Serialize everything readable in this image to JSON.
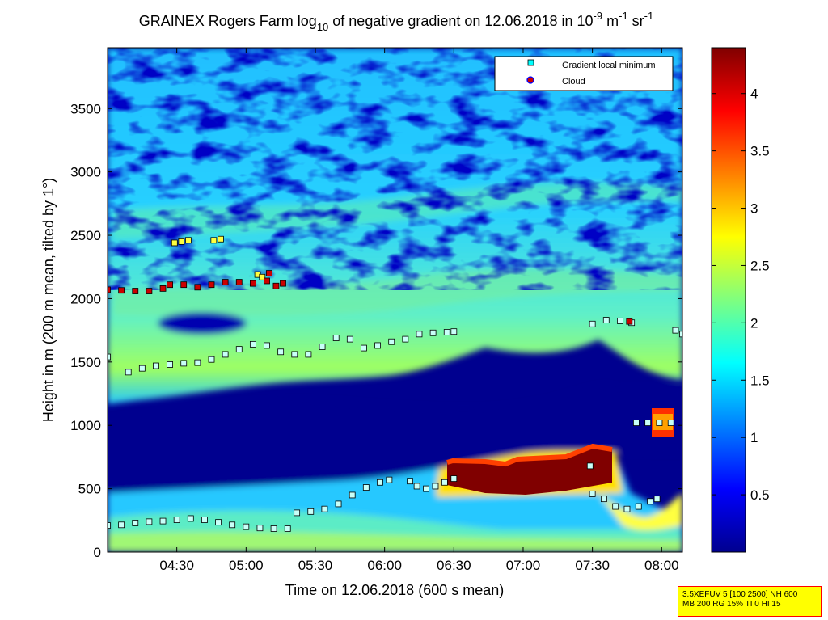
{
  "title": {
    "main": "GRAINEX Rogers Farm log",
    "sub1": "10",
    "mid": " of negative gradient on 12.06.2018 in 10",
    "sup1": "-9",
    "mid2": " m",
    "sup2": "-1",
    "mid3": " sr",
    "sup3": "-1"
  },
  "info_box": {
    "line1": "3.5XEFUV 5 [100 2500] NH 600",
    "line2": "MB 200 RG 15% TI 0 HI 15"
  },
  "colors": {
    "background": "#00008f",
    "overlay_min_marker": "#00ffff",
    "cloud_marker_fill": "#cc0000",
    "cloud_marker_edge": "#0000ff"
  },
  "chart_data": {
    "type": "heatmap",
    "xlabel": "Time on 12.06.2018 (600 s mean)",
    "ylabel": "Height in m (200 m mean, tilted by 1°)",
    "x_ticks": [
      "04:30",
      "05:00",
      "05:30",
      "06:00",
      "06:30",
      "07:00",
      "07:30",
      "08:00"
    ],
    "x_tick_minutes": [
      270,
      300,
      330,
      360,
      390,
      420,
      450,
      480
    ],
    "xlim_minutes": [
      240,
      489
    ],
    "y_ticks": [
      "0",
      "500",
      "1000",
      "1500",
      "2000",
      "2500",
      "3000",
      "3500"
    ],
    "y_tick_values": [
      0,
      500,
      1000,
      1500,
      2000,
      2500,
      3000,
      3500
    ],
    "ylim": [
      0,
      3980
    ],
    "colorbar": {
      "ticks": [
        "0.5",
        "1",
        "1.5",
        "2",
        "2.5",
        "3",
        "3.5",
        "4"
      ],
      "tick_values": [
        0.5,
        1,
        1.5,
        2,
        2.5,
        3,
        3.5,
        4
      ],
      "range": [
        0,
        4.4
      ],
      "colormap": "jet"
    },
    "legend": {
      "position": "top-right",
      "entries": [
        {
          "label": "Gradient local minimum",
          "marker": "square",
          "color": "#00ffff"
        },
        {
          "label": "Cloud",
          "marker": "circle",
          "color": "#cc0000"
        }
      ]
    },
    "gradient_minimum": [
      {
        "t": 240,
        "h": 210
      },
      {
        "t": 246,
        "h": 215
      },
      {
        "t": 252,
        "h": 230
      },
      {
        "t": 258,
        "h": 240
      },
      {
        "t": 264,
        "h": 245
      },
      {
        "t": 270,
        "h": 255
      },
      {
        "t": 276,
        "h": 265
      },
      {
        "t": 282,
        "h": 255
      },
      {
        "t": 288,
        "h": 235
      },
      {
        "t": 294,
        "h": 215
      },
      {
        "t": 300,
        "h": 200
      },
      {
        "t": 306,
        "h": 190
      },
      {
        "t": 312,
        "h": 185
      },
      {
        "t": 318,
        "h": 185
      },
      {
        "t": 322,
        "h": 310
      },
      {
        "t": 328,
        "h": 320
      },
      {
        "t": 334,
        "h": 340
      },
      {
        "t": 340,
        "h": 380
      },
      {
        "t": 346,
        "h": 450
      },
      {
        "t": 352,
        "h": 510
      },
      {
        "t": 358,
        "h": 550
      },
      {
        "t": 362,
        "h": 570
      },
      {
        "t": 371,
        "h": 560
      },
      {
        "t": 374,
        "h": 520
      },
      {
        "t": 378,
        "h": 500
      },
      {
        "t": 382,
        "h": 520
      },
      {
        "t": 386,
        "h": 550
      },
      {
        "t": 390,
        "h": 580
      },
      {
        "t": 240,
        "h": 1540
      },
      {
        "t": 249,
        "h": 1420
      },
      {
        "t": 255,
        "h": 1450
      },
      {
        "t": 261,
        "h": 1470
      },
      {
        "t": 267,
        "h": 1480
      },
      {
        "t": 273,
        "h": 1490
      },
      {
        "t": 279,
        "h": 1495
      },
      {
        "t": 285,
        "h": 1520
      },
      {
        "t": 291,
        "h": 1560
      },
      {
        "t": 297,
        "h": 1600
      },
      {
        "t": 303,
        "h": 1640
      },
      {
        "t": 309,
        "h": 1630
      },
      {
        "t": 315,
        "h": 1580
      },
      {
        "t": 321,
        "h": 1560
      },
      {
        "t": 327,
        "h": 1560
      },
      {
        "t": 333,
        "h": 1620
      },
      {
        "t": 339,
        "h": 1690
      },
      {
        "t": 345,
        "h": 1680
      },
      {
        "t": 351,
        "h": 1610
      },
      {
        "t": 357,
        "h": 1630
      },
      {
        "t": 363,
        "h": 1660
      },
      {
        "t": 369,
        "h": 1680
      },
      {
        "t": 375,
        "h": 1720
      },
      {
        "t": 381,
        "h": 1730
      },
      {
        "t": 387,
        "h": 1735
      },
      {
        "t": 390,
        "h": 1740
      },
      {
        "t": 450,
        "h": 1800
      },
      {
        "t": 456,
        "h": 1830
      },
      {
        "t": 462,
        "h": 1825
      },
      {
        "t": 467,
        "h": 1810
      },
      {
        "t": 486,
        "h": 1750
      },
      {
        "t": 489,
        "h": 1720
      },
      {
        "t": 469,
        "h": 1020
      },
      {
        "t": 474,
        "h": 1020
      },
      {
        "t": 479,
        "h": 1020
      },
      {
        "t": 484,
        "h": 1020
      },
      {
        "t": 449,
        "h": 680
      },
      {
        "t": 450,
        "h": 460
      },
      {
        "t": 455,
        "h": 420
      },
      {
        "t": 460,
        "h": 360
      },
      {
        "t": 465,
        "h": 340
      },
      {
        "t": 470,
        "h": 360
      },
      {
        "t": 475,
        "h": 400
      },
      {
        "t": 478,
        "h": 420
      }
    ],
    "yellow_points": [
      {
        "t": 269,
        "h": 2440
      },
      {
        "t": 272,
        "h": 2450
      },
      {
        "t": 275,
        "h": 2460
      },
      {
        "t": 286,
        "h": 2460
      },
      {
        "t": 289,
        "h": 2470
      },
      {
        "t": 305,
        "h": 2190
      },
      {
        "t": 307,
        "h": 2170
      }
    ],
    "cloud": [
      {
        "t": 240,
        "h": 2070
      },
      {
        "t": 246,
        "h": 2065
      },
      {
        "t": 252,
        "h": 2060
      },
      {
        "t": 258,
        "h": 2060
      },
      {
        "t": 264,
        "h": 2080
      },
      {
        "t": 267,
        "h": 2110
      },
      {
        "t": 273,
        "h": 2110
      },
      {
        "t": 279,
        "h": 2090
      },
      {
        "t": 285,
        "h": 2110
      },
      {
        "t": 291,
        "h": 2130
      },
      {
        "t": 297,
        "h": 2130
      },
      {
        "t": 303,
        "h": 2120
      },
      {
        "t": 309,
        "h": 2140
      },
      {
        "t": 310,
        "h": 2200
      },
      {
        "t": 313,
        "h": 2100
      },
      {
        "t": 316,
        "h": 2120
      },
      {
        "t": 466,
        "h": 1820
      }
    ]
  }
}
